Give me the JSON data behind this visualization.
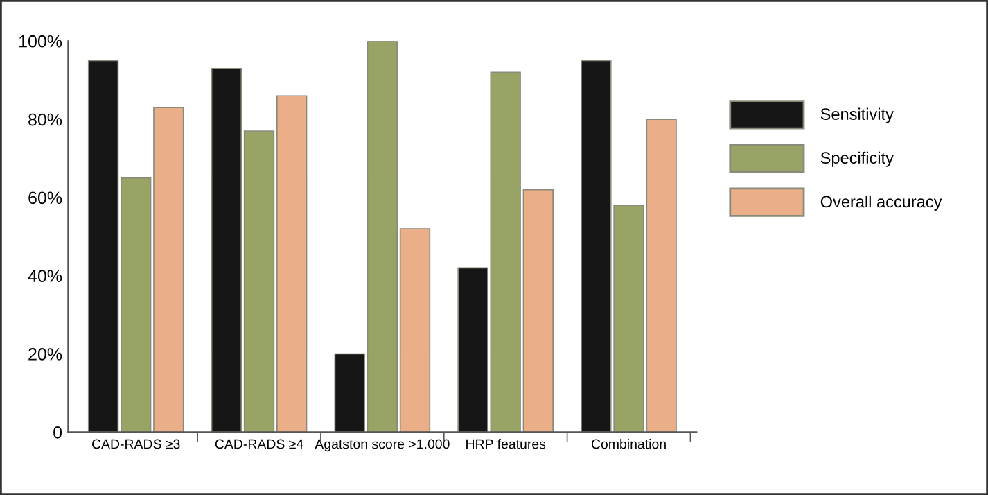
{
  "chart_data": {
    "type": "bar",
    "categories": [
      "CAD-RADS ≥3",
      "CAD-RADS ≥4",
      "Agatston score >1.000",
      "HRP features",
      "Combination"
    ],
    "series": [
      {
        "name": "Sensitivity",
        "color": "#161616",
        "values": [
          95,
          93,
          20,
          42,
          95
        ]
      },
      {
        "name": "Specificity",
        "color": "#98a466",
        "values": [
          65,
          77,
          100,
          92,
          58
        ]
      },
      {
        "name": "Overall accuracy",
        "color": "#eaae88",
        "values": [
          83,
          86,
          52,
          62,
          80
        ]
      }
    ],
    "ylim": [
      0,
      100
    ],
    "yticks": [
      {
        "value": 0,
        "label": "0"
      },
      {
        "value": 20,
        "label": "20%"
      },
      {
        "value": 40,
        "label": "40%"
      },
      {
        "value": 60,
        "label": "60%"
      },
      {
        "value": 80,
        "label": "80%"
      },
      {
        "value": 100,
        "label": "100%"
      }
    ],
    "grid": false,
    "legend": "right"
  }
}
